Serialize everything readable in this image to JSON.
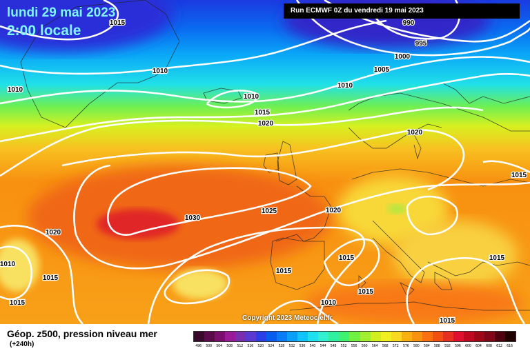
{
  "header": {
    "date": "lundi 29 mai 2023",
    "time": "2:00 locale",
    "run": "Run ECMWF 0Z du vendredi 19 mai 2023"
  },
  "footer": {
    "title": "Géop. z500, pression niveau mer",
    "subtitle": "(+240h)",
    "copyright": "Copyright 2023 Meteociel.fr"
  },
  "scale": {
    "labels": [
      "496",
      "500",
      "504",
      "508",
      "512",
      "516",
      "520",
      "524",
      "528",
      "532",
      "536",
      "540",
      "544",
      "548",
      "552",
      "556",
      "560",
      "564",
      "568",
      "572",
      "576",
      "580",
      "584",
      "588",
      "592",
      "596",
      "600",
      "604",
      "608",
      "612",
      "616"
    ],
    "colors": [
      "#3a0a2e",
      "#5c0a4a",
      "#7a0f6e",
      "#9a1a9a",
      "#7a2fb0",
      "#5a3ad0",
      "#2a3fe8",
      "#0a5cf0",
      "#0a7cf8",
      "#0aa0f8",
      "#10c4f8",
      "#20e0f0",
      "#30f0d0",
      "#30f0a0",
      "#40f070",
      "#70f040",
      "#a0f030",
      "#d0f020",
      "#f0f020",
      "#f8d820",
      "#f8b010",
      "#f89010",
      "#f87010",
      "#f05010",
      "#e83020",
      "#e01030",
      "#c00820",
      "#a00818",
      "#800818",
      "#500010",
      "#200000"
    ]
  },
  "isobars": [
    "1015",
    "990",
    "995",
    "1000",
    "1005",
    "1010",
    "1010",
    "1010",
    "1010",
    "1015",
    "1020",
    "1020",
    "1015",
    "1020",
    "1025",
    "1030",
    "1020",
    "1015",
    "1015",
    "1015",
    "1015",
    "1010",
    "1010",
    "1015",
    "1015",
    "1015"
  ]
}
